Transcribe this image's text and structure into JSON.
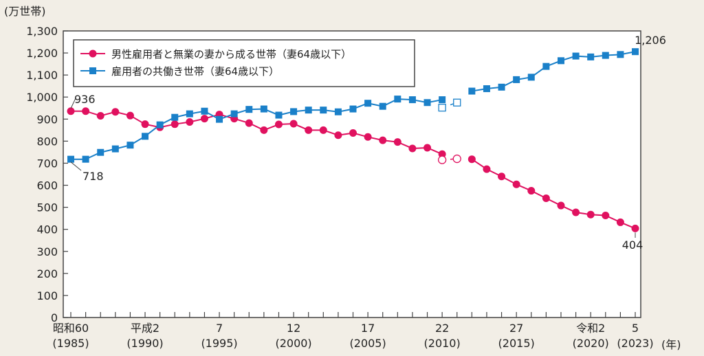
{
  "chart_data": {
    "type": "line",
    "y_unit_label": "(万世帯)",
    "x_unit_label": "(年)",
    "ylim": [
      0,
      1300
    ],
    "y_ticks": [
      0,
      100,
      200,
      300,
      400,
      500,
      600,
      700,
      800,
      900,
      1000,
      1100,
      1200,
      1300
    ],
    "y_tick_labels": [
      "0",
      "100",
      "200",
      "300",
      "400",
      "500",
      "600",
      "700",
      "800",
      "900",
      "1,000",
      "1,100",
      "1,200",
      "1,300"
    ],
    "x_range": [
      1985,
      2023
    ],
    "x_tick_labels": [
      {
        "year": 1985,
        "era": "昭和60",
        "western": "(1985)"
      },
      {
        "year": 1990,
        "era": "平成2",
        "western": "(1990)"
      },
      {
        "year": 1995,
        "era": "7",
        "western": "(1995)"
      },
      {
        "year": 2000,
        "era": "12",
        "western": "(2000)"
      },
      {
        "year": 2005,
        "era": "17",
        "western": "(2005)"
      },
      {
        "year": 2010,
        "era": "22",
        "western": "(2010)"
      },
      {
        "year": 2015,
        "era": "27",
        "western": "(2015)"
      },
      {
        "year": 2020,
        "era": "令和2",
        "western": "(2020)"
      },
      {
        "year": 2023,
        "era": "5",
        "western": "(2023)"
      }
    ],
    "x": [
      1985,
      1986,
      1987,
      1988,
      1989,
      1990,
      1991,
      1992,
      1993,
      1994,
      1995,
      1996,
      1997,
      1998,
      1999,
      2000,
      2001,
      2002,
      2003,
      2004,
      2005,
      2006,
      2007,
      2008,
      2009,
      2010,
      2011,
      2012,
      2013,
      2014,
      2015,
      2016,
      2017,
      2018,
      2019,
      2020,
      2021,
      2022,
      2023
    ],
    "series": [
      {
        "name": "男性雇用者と無業の妻から成る世帯（妻64歳以下）",
        "color": "#e0115f",
        "marker": "circle",
        "values": [
          936,
          936,
          915,
          933,
          916,
          877,
          863,
          877,
          887,
          902,
          921,
          902,
          882,
          850,
          876,
          879,
          850,
          850,
          827,
          837,
          819,
          804,
          796,
          767,
          770,
          741,
          null,
          718,
          673,
          640,
          604,
          575,
          541,
          508,
          477,
          467,
          463,
          432,
          404
        ],
        "open_points": [
          {
            "x": 2010,
            "y": 715
          },
          {
            "x": 2011,
            "y": 720
          }
        ]
      },
      {
        "name": "雇用者の共働き世帯（妻64歳以下）",
        "color": "#1a80c9",
        "marker": "square",
        "values": [
          718,
          718,
          749,
          765,
          782,
          822,
          874,
          908,
          924,
          936,
          899,
          924,
          944,
          946,
          918,
          934,
          941,
          941,
          933,
          946,
          972,
          958,
          991,
          988,
          975,
          988,
          null,
          1027,
          1038,
          1045,
          1079,
          1090,
          1139,
          1165,
          1186,
          1182,
          1189,
          1193,
          1206
        ],
        "open_points": [
          {
            "x": 2010,
            "y": 952
          },
          {
            "x": 2011,
            "y": 975
          }
        ]
      }
    ],
    "data_labels": [
      {
        "text": "936",
        "x": 1985,
        "y": 936
      },
      {
        "text": "718",
        "x": 1985,
        "y": 718
      },
      {
        "text": "1,206",
        "x": 2023,
        "y": 1206
      },
      {
        "text": "404",
        "x": 2023,
        "y": 404
      }
    ],
    "legend": "top-left",
    "grid": false
  }
}
